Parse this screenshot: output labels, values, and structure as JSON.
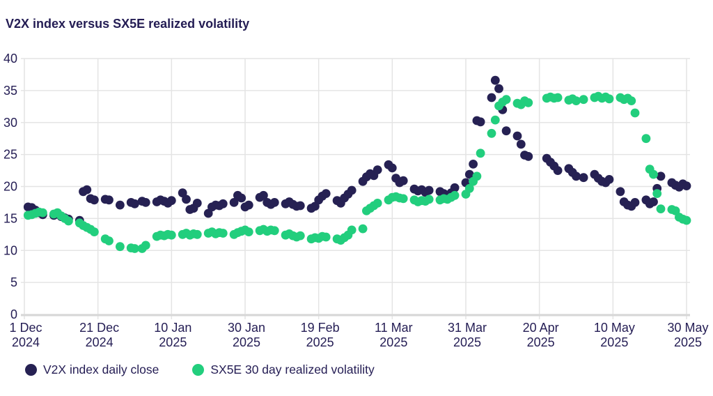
{
  "title": "V2X index versus SX5E realized volatility",
  "colors": {
    "v2x": "#262153",
    "sx5e": "#22ce7d",
    "grid": "#e4e4e4",
    "axis": "#d7d7d7",
    "text": "#241d54"
  },
  "legend": {
    "items": [
      {
        "id": "v2x",
        "label": "V2X index daily close"
      },
      {
        "id": "sx5e",
        "label": "SX5E 30 day realized volatility"
      }
    ]
  },
  "chart_data": {
    "type": "scatter",
    "title": "V2X index versus SX5E realized volatility",
    "xlabel": "",
    "ylabel": "",
    "grid": true,
    "legend_position": "bottom-left",
    "ylim": [
      0,
      40
    ],
    "y_ticks": [
      0,
      5,
      10,
      15,
      20,
      25,
      30,
      35,
      40
    ],
    "x_unit": "days since 1 Dec 2024, points plotted on business days",
    "xlim_days": [
      0,
      180
    ],
    "x_ticks": [
      {
        "day": 0,
        "label": "1 Dec",
        "year": "2024"
      },
      {
        "day": 20,
        "label": "21 Dec",
        "year": "2024"
      },
      {
        "day": 40,
        "label": "10 Jan",
        "year": "2025"
      },
      {
        "day": 60,
        "label": "30 Jan",
        "year": "2025"
      },
      {
        "day": 80,
        "label": "19 Feb",
        "year": "2025"
      },
      {
        "day": 100,
        "label": "11 Mar",
        "year": "2025"
      },
      {
        "day": 120,
        "label": "31 Mar",
        "year": "2025"
      },
      {
        "day": 140,
        "label": "20 Apr",
        "year": "2025"
      },
      {
        "day": 160,
        "label": "10 May",
        "year": "2025"
      },
      {
        "day": 180,
        "label": "30 May",
        "year": "2025"
      }
    ],
    "series": [
      {
        "id": "v2x",
        "name": "V2X index daily close",
        "color_key": "v2x",
        "points": [
          [
            1,
            16.8
          ],
          [
            2,
            16.7
          ],
          [
            3,
            16.3
          ],
          [
            4,
            15.9
          ],
          [
            5,
            15.6
          ],
          [
            8,
            15.5
          ],
          [
            9,
            15.7
          ],
          [
            10,
            15.3
          ],
          [
            11,
            15.1
          ],
          [
            12,
            14.9
          ],
          [
            15,
            14.7
          ],
          [
            16,
            19.2
          ],
          [
            17,
            19.5
          ],
          [
            18,
            18.1
          ],
          [
            19,
            17.9
          ],
          [
            22,
            18.0
          ],
          [
            23,
            17.9
          ],
          [
            26,
            17.1
          ],
          [
            29,
            17.5
          ],
          [
            30,
            17.3
          ],
          [
            32,
            17.7
          ],
          [
            33,
            17.5
          ],
          [
            36,
            17.6
          ],
          [
            37,
            17.9
          ],
          [
            38,
            17.7
          ],
          [
            39,
            17.4
          ],
          [
            40,
            17.8
          ],
          [
            43,
            19.0
          ],
          [
            44,
            18.0
          ],
          [
            45,
            16.4
          ],
          [
            46,
            16.6
          ],
          [
            47,
            17.4
          ],
          [
            50,
            15.8
          ],
          [
            51,
            16.8
          ],
          [
            52,
            17.1
          ],
          [
            53,
            17.0
          ],
          [
            54,
            17.3
          ],
          [
            57,
            17.5
          ],
          [
            58,
            18.6
          ],
          [
            59,
            18.2
          ],
          [
            60,
            16.8
          ],
          [
            61,
            17.1
          ],
          [
            64,
            18.3
          ],
          [
            65,
            18.6
          ],
          [
            66,
            17.5
          ],
          [
            67,
            17.2
          ],
          [
            68,
            17.5
          ],
          [
            71,
            17.3
          ],
          [
            72,
            17.6
          ],
          [
            73,
            17.2
          ],
          [
            74,
            16.9
          ],
          [
            75,
            17.0
          ],
          [
            78,
            16.6
          ],
          [
            79,
            16.9
          ],
          [
            80,
            17.9
          ],
          [
            81,
            18.5
          ],
          [
            82,
            18.9
          ],
          [
            85,
            17.8
          ],
          [
            86,
            17.4
          ],
          [
            87,
            18.2
          ],
          [
            88,
            18.8
          ],
          [
            89,
            19.4
          ],
          [
            92,
            20.8
          ],
          [
            93,
            21.5
          ],
          [
            94,
            22.0
          ],
          [
            95,
            21.7
          ],
          [
            96,
            22.6
          ],
          [
            99,
            23.4
          ],
          [
            100,
            22.9
          ],
          [
            101,
            21.3
          ],
          [
            102,
            20.6
          ],
          [
            103,
            20.9
          ],
          [
            106,
            19.6
          ],
          [
            107,
            19.3
          ],
          [
            108,
            19.5
          ],
          [
            109,
            19.1
          ],
          [
            110,
            19.4
          ],
          [
            113,
            19.2
          ],
          [
            114,
            18.9
          ],
          [
            115,
            18.6
          ],
          [
            116,
            19.0
          ],
          [
            117,
            19.8
          ],
          [
            120,
            20.6
          ],
          [
            121,
            21.9
          ],
          [
            122,
            23.5
          ],
          [
            123,
            30.3
          ],
          [
            124,
            30.1
          ],
          [
            127,
            33.9
          ],
          [
            128,
            36.6
          ],
          [
            129,
            35.3
          ],
          [
            130,
            32.0
          ],
          [
            131,
            28.7
          ],
          [
            134,
            27.9
          ],
          [
            135,
            26.6
          ],
          [
            136,
            24.9
          ],
          [
            137,
            24.7
          ],
          [
            142,
            24.4
          ],
          [
            143,
            23.8
          ],
          [
            144,
            23.2
          ],
          [
            145,
            22.5
          ],
          [
            148,
            22.8
          ],
          [
            149,
            22.2
          ],
          [
            150,
            21.6
          ],
          [
            152,
            21.4
          ],
          [
            155,
            21.9
          ],
          [
            156,
            21.3
          ],
          [
            157,
            20.8
          ],
          [
            158,
            20.6
          ],
          [
            159,
            21.1
          ],
          [
            162,
            19.2
          ],
          [
            163,
            17.6
          ],
          [
            164,
            17.1
          ],
          [
            165,
            16.9
          ],
          [
            166,
            17.5
          ],
          [
            169,
            17.9
          ],
          [
            170,
            17.3
          ],
          [
            171,
            17.6
          ],
          [
            172,
            19.7
          ],
          [
            173,
            21.6
          ],
          [
            176,
            20.6
          ],
          [
            177,
            20.2
          ],
          [
            178,
            19.9
          ],
          [
            179,
            20.4
          ],
          [
            180,
            20.1
          ]
        ]
      },
      {
        "id": "sx5e",
        "name": "SX5E 30 day realized volatility",
        "color_key": "sx5e",
        "points": [
          [
            1,
            15.5
          ],
          [
            2,
            15.6
          ],
          [
            3,
            15.8
          ],
          [
            4,
            16.0
          ],
          [
            5,
            15.9
          ],
          [
            8,
            15.7
          ],
          [
            9,
            15.9
          ],
          [
            10,
            15.4
          ],
          [
            11,
            15.0
          ],
          [
            12,
            14.6
          ],
          [
            15,
            14.3
          ],
          [
            16,
            13.9
          ],
          [
            17,
            13.6
          ],
          [
            18,
            13.3
          ],
          [
            19,
            12.9
          ],
          [
            22,
            11.8
          ],
          [
            23,
            11.5
          ],
          [
            26,
            10.6
          ],
          [
            29,
            10.4
          ],
          [
            30,
            10.3
          ],
          [
            32,
            10.3
          ],
          [
            33,
            10.8
          ],
          [
            36,
            12.2
          ],
          [
            37,
            12.4
          ],
          [
            38,
            12.3
          ],
          [
            39,
            12.5
          ],
          [
            40,
            12.4
          ],
          [
            43,
            12.5
          ],
          [
            44,
            12.7
          ],
          [
            45,
            12.4
          ],
          [
            46,
            12.6
          ],
          [
            47,
            12.5
          ],
          [
            50,
            12.7
          ],
          [
            51,
            12.9
          ],
          [
            52,
            12.6
          ],
          [
            53,
            12.8
          ],
          [
            54,
            12.7
          ],
          [
            57,
            12.5
          ],
          [
            58,
            12.8
          ],
          [
            59,
            13.0
          ],
          [
            60,
            13.2
          ],
          [
            61,
            12.9
          ],
          [
            64,
            13.1
          ],
          [
            65,
            13.3
          ],
          [
            66,
            13.0
          ],
          [
            67,
            13.2
          ],
          [
            68,
            13.1
          ],
          [
            71,
            12.4
          ],
          [
            72,
            12.6
          ],
          [
            73,
            12.3
          ],
          [
            74,
            12.1
          ],
          [
            75,
            12.3
          ],
          [
            78,
            11.8
          ],
          [
            79,
            12.0
          ],
          [
            80,
            11.9
          ],
          [
            81,
            12.2
          ],
          [
            82,
            12.1
          ],
          [
            85,
            11.8
          ],
          [
            86,
            11.6
          ],
          [
            87,
            12.0
          ],
          [
            88,
            12.4
          ],
          [
            89,
            13.2
          ],
          [
            92,
            13.4
          ],
          [
            93,
            16.2
          ],
          [
            94,
            16.6
          ],
          [
            95,
            17.0
          ],
          [
            96,
            17.4
          ],
          [
            99,
            17.9
          ],
          [
            100,
            18.3
          ],
          [
            101,
            18.4
          ],
          [
            102,
            18.2
          ],
          [
            103,
            18.1
          ],
          [
            106,
            17.9
          ],
          [
            107,
            17.6
          ],
          [
            108,
            17.8
          ],
          [
            109,
            17.7
          ],
          [
            110,
            18.0
          ],
          [
            113,
            17.9
          ],
          [
            114,
            18.1
          ],
          [
            115,
            18.0
          ],
          [
            116,
            18.3
          ],
          [
            117,
            18.6
          ],
          [
            120,
            18.8
          ],
          [
            121,
            19.7
          ],
          [
            122,
            20.8
          ],
          [
            123,
            21.6
          ],
          [
            124,
            25.2
          ],
          [
            127,
            28.3
          ],
          [
            128,
            30.4
          ],
          [
            129,
            32.6
          ],
          [
            130,
            33.2
          ],
          [
            131,
            33.6
          ],
          [
            134,
            33.0
          ],
          [
            135,
            32.8
          ],
          [
            136,
            33.4
          ],
          [
            137,
            33.1
          ],
          [
            142,
            33.8
          ],
          [
            143,
            34.0
          ],
          [
            144,
            33.8
          ],
          [
            145,
            33.9
          ],
          [
            148,
            33.5
          ],
          [
            149,
            33.7
          ],
          [
            150,
            33.4
          ],
          [
            152,
            33.6
          ],
          [
            155,
            33.9
          ],
          [
            156,
            34.1
          ],
          [
            157,
            33.8
          ],
          [
            158,
            34.0
          ],
          [
            159,
            33.7
          ],
          [
            162,
            33.9
          ],
          [
            163,
            33.6
          ],
          [
            164,
            33.8
          ],
          [
            165,
            33.4
          ],
          [
            166,
            31.5
          ],
          [
            169,
            27.5
          ],
          [
            170,
            22.7
          ],
          [
            171,
            21.9
          ],
          [
            172,
            18.9
          ],
          [
            173,
            16.5
          ],
          [
            176,
            16.4
          ],
          [
            177,
            16.2
          ],
          [
            178,
            15.2
          ],
          [
            179,
            14.9
          ],
          [
            180,
            14.7
          ]
        ]
      }
    ]
  }
}
